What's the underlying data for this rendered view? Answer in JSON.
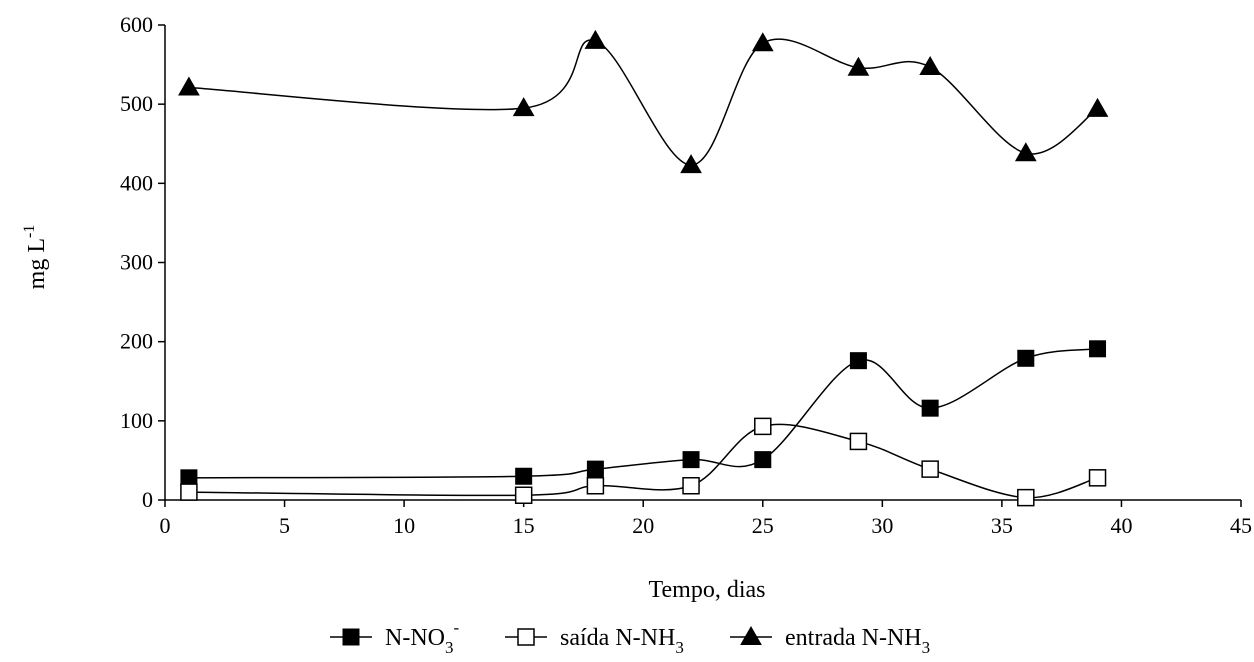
{
  "chart_data": {
    "type": "line",
    "xlabel": "Tempo, dias",
    "ylabel": "mg L",
    "ylabel_superscript": "-1",
    "xlim": [
      0,
      45
    ],
    "ylim": [
      0,
      600
    ],
    "xticks": [
      0,
      5,
      10,
      15,
      20,
      25,
      30,
      35,
      40,
      45
    ],
    "yticks": [
      0,
      100,
      200,
      300,
      400,
      500,
      600
    ],
    "grid": false,
    "legend_position": "bottom",
    "smooth": true,
    "series": [
      {
        "name": "N-NO3-",
        "legend": {
          "base": "N-NO",
          "sub": "3",
          "sup": "-"
        },
        "marker": "filled-square",
        "x": [
          1,
          15,
          18,
          22,
          25,
          29,
          32,
          36,
          39
        ],
        "y": [
          28,
          30,
          39,
          51,
          51,
          176,
          116,
          179,
          191
        ]
      },
      {
        "name": "saída N-NH3",
        "legend": {
          "base": "saída N-NH",
          "sub": "3",
          "sup": ""
        },
        "marker": "open-square",
        "x": [
          1,
          15,
          18,
          22,
          25,
          29,
          32,
          36,
          39
        ],
        "y": [
          10,
          6,
          18,
          18,
          93,
          74,
          39,
          3,
          28
        ]
      },
      {
        "name": "entrada N-NH3",
        "legend": {
          "base": "entrada N-NH",
          "sub": "3",
          "sup": ""
        },
        "marker": "filled-triangle",
        "x": [
          1,
          15,
          18,
          22,
          25,
          29,
          32,
          36,
          39
        ],
        "y": [
          521,
          495,
          580,
          423,
          577,
          546,
          547,
          438,
          494
        ]
      }
    ]
  }
}
